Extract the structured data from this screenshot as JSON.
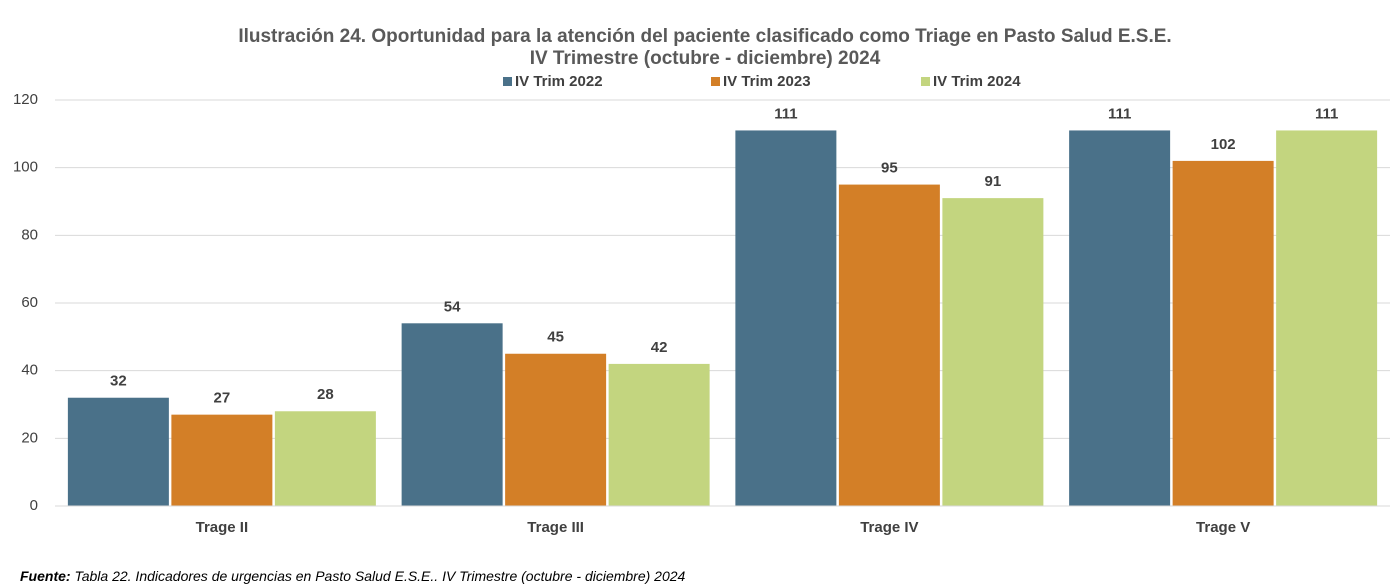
{
  "chart_data": {
    "type": "bar",
    "title": "Ilustración 24. Oportunidad para la atención del paciente clasificado como Triage en Pasto Salud E.S.E.",
    "subtitle": "IV Trimestre (octubre - diciembre) 2024",
    "categories": [
      "Trage II",
      "Trage III",
      "Trage IV",
      "Trage V"
    ],
    "series": [
      {
        "name": "IV Trim 2022",
        "color": "#4a7189",
        "values": [
          32,
          54,
          111,
          111
        ]
      },
      {
        "name": "IV Trim 2023",
        "color": "#d37f27",
        "values": [
          27,
          45,
          95,
          102
        ]
      },
      {
        "name": "IV Trim 2024",
        "color": "#c3d57f",
        "values": [
          28,
          42,
          91,
          111
        ]
      }
    ],
    "ylim": [
      0,
      120
    ],
    "yticks": [
      0,
      20,
      40,
      60,
      80,
      100,
      120
    ],
    "grid": true,
    "legend": "top"
  },
  "footer": {
    "label": "Fuente:",
    "text": "Tabla 22. Indicadores de urgencias en Pasto Salud E.S.E.. IV Trimestre (octubre - diciembre) 2024"
  }
}
